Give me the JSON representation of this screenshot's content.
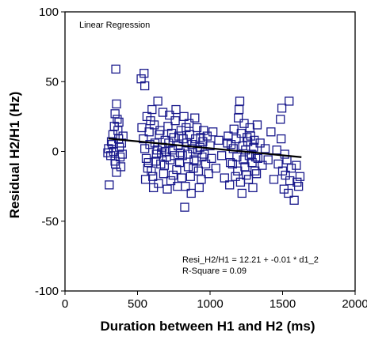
{
  "chart_data": {
    "type": "scatter",
    "subtitle": "Linear Regression",
    "xlabel": "Duration between H1 and H2 (ms)",
    "ylabel": "Residual H2/H1 (Hz)",
    "xlim": [
      0,
      2000
    ],
    "ylim": [
      -100,
      100
    ],
    "xticks": [
      0,
      500,
      1000,
      1500,
      2000
    ],
    "yticks": [
      -100,
      -50,
      0,
      50,
      100
    ],
    "x_tick_labels": [
      "0",
      "500",
      "1000",
      "1500",
      "2000"
    ],
    "y_tick_labels": [
      "-100",
      "-50",
      "0",
      "50",
      "100"
    ],
    "grid": false,
    "marker": "open-square",
    "marker_color": "#1a1a8c",
    "line_color": "#000000",
    "regression": {
      "intercept": 12.21,
      "slope": -0.01,
      "x_range": [
        300,
        1630
      ]
    },
    "annotations": [
      "Resi_H2/H1 = 12.21 + -0.01 * d1_2",
      "R-Square = 0.09"
    ],
    "points": [
      [
        350,
        59
      ],
      [
        545,
        56
      ],
      [
        525,
        52
      ],
      [
        550,
        47
      ],
      [
        1325,
        19
      ],
      [
        1495,
        31
      ],
      [
        1545,
        36
      ],
      [
        1485,
        23
      ],
      [
        300,
        2
      ],
      [
        295,
        -1
      ],
      [
        305,
        -24
      ],
      [
        320,
        7
      ],
      [
        330,
        12
      ],
      [
        340,
        18
      ],
      [
        345,
        27
      ],
      [
        355,
        34
      ],
      [
        360,
        23
      ],
      [
        365,
        15
      ],
      [
        370,
        9
      ],
      [
        375,
        3
      ],
      [
        380,
        -4
      ],
      [
        385,
        -11
      ],
      [
        355,
        -15
      ],
      [
        345,
        -7
      ],
      [
        335,
        0
      ],
      [
        325,
        5
      ],
      [
        315,
        -3
      ],
      [
        390,
        6
      ],
      [
        395,
        -2
      ],
      [
        400,
        11
      ],
      [
        372,
        21
      ],
      [
        348,
        -9
      ],
      [
        530,
        17
      ],
      [
        540,
        9
      ],
      [
        550,
        2
      ],
      [
        560,
        -5
      ],
      [
        570,
        -12
      ],
      [
        580,
        14
      ],
      [
        590,
        22
      ],
      [
        600,
        30
      ],
      [
        605,
        -18
      ],
      [
        610,
        -26
      ],
      [
        620,
        6
      ],
      [
        630,
        -2
      ],
      [
        640,
        36
      ],
      [
        650,
        12
      ],
      [
        660,
        -9
      ],
      [
        670,
        3
      ],
      [
        680,
        -16
      ],
      [
        690,
        8
      ],
      [
        700,
        -4
      ],
      [
        710,
        18
      ],
      [
        720,
        26
      ],
      [
        730,
        -21
      ],
      [
        740,
        1
      ],
      [
        750,
        10
      ],
      [
        760,
        22
      ],
      [
        770,
        -13
      ],
      [
        780,
        4
      ],
      [
        790,
        -8
      ],
      [
        800,
        15
      ],
      [
        810,
        -3
      ],
      [
        820,
        25
      ],
      [
        830,
        -25
      ],
      [
        840,
        6
      ],
      [
        850,
        -11
      ],
      [
        860,
        12
      ],
      [
        870,
        -30
      ],
      [
        880,
        2
      ],
      [
        890,
        -6
      ],
      [
        900,
        9
      ],
      [
        910,
        17
      ],
      [
        920,
        -14
      ],
      [
        930,
        3
      ],
      [
        940,
        -20
      ],
      [
        950,
        7
      ],
      [
        960,
        -2
      ],
      [
        970,
        -9
      ],
      [
        980,
        11
      ],
      [
        990,
        -16
      ],
      [
        1000,
        4
      ],
      [
        1010,
        -5
      ],
      [
        1020,
        14
      ],
      [
        1040,
        -12
      ],
      [
        1060,
        8
      ],
      [
        1080,
        -3
      ],
      [
        1100,
        -19
      ],
      [
        1120,
        6
      ],
      [
        1140,
        -8
      ],
      [
        1160,
        2
      ],
      [
        1180,
        9
      ],
      [
        1190,
        -14
      ],
      [
        1200,
        30
      ],
      [
        1205,
        36
      ],
      [
        1210,
        -22
      ],
      [
        1215,
        13
      ],
      [
        1220,
        -30
      ],
      [
        1225,
        4
      ],
      [
        1230,
        -6
      ],
      [
        1235,
        20
      ],
      [
        1240,
        -11
      ],
      [
        1245,
        1
      ],
      [
        1250,
        -17
      ],
      [
        1260,
        7
      ],
      [
        1270,
        -3
      ],
      [
        1280,
        11
      ],
      [
        1290,
        -8
      ],
      [
        1300,
        3
      ],
      [
        1310,
        -14
      ],
      [
        1330,
        -5
      ],
      [
        1345,
        6
      ],
      [
        1360,
        -10
      ],
      [
        1380,
        2
      ],
      [
        1400,
        -6
      ],
      [
        1420,
        14
      ],
      [
        1440,
        -20
      ],
      [
        1460,
        1
      ],
      [
        1470,
        -9
      ],
      [
        1490,
        9
      ],
      [
        1500,
        -14
      ],
      [
        1510,
        -27
      ],
      [
        1515,
        -2
      ],
      [
        1520,
        -17
      ],
      [
        1530,
        -6
      ],
      [
        1540,
        -30
      ],
      [
        1550,
        -21
      ],
      [
        1560,
        -12
      ],
      [
        1580,
        -35
      ],
      [
        1600,
        -22
      ],
      [
        1620,
        -18
      ],
      [
        1595,
        -10
      ],
      [
        1610,
        -25
      ],
      [
        555,
        -20
      ],
      [
        565,
        25
      ],
      [
        575,
        -8
      ],
      [
        585,
        5
      ],
      [
        595,
        -14
      ],
      [
        615,
        19
      ],
      [
        625,
        -7
      ],
      [
        635,
        1
      ],
      [
        645,
        -23
      ],
      [
        655,
        15
      ],
      [
        665,
        -1
      ],
      [
        675,
        28
      ],
      [
        685,
        -10
      ],
      [
        695,
        0
      ],
      [
        705,
        -27
      ],
      [
        715,
        6
      ],
      [
        725,
        -6
      ],
      [
        735,
        13
      ],
      [
        745,
        -17
      ],
      [
        755,
        -3
      ],
      [
        765,
        30
      ],
      [
        775,
        -25
      ],
      [
        785,
        11
      ],
      [
        795,
        -1
      ],
      [
        805,
        -19
      ],
      [
        815,
        9
      ],
      [
        825,
        -40
      ],
      [
        835,
        17
      ],
      [
        845,
        -2
      ],
      [
        855,
        20
      ],
      [
        865,
        -18
      ],
      [
        875,
        5
      ],
      [
        885,
        -12
      ],
      [
        895,
        24
      ],
      [
        905,
        -7
      ],
      [
        915,
        1
      ],
      [
        925,
        -26
      ],
      [
        935,
        10
      ],
      [
        945,
        -4
      ],
      [
        955,
        15
      ],
      [
        1195,
        24
      ],
      [
        1185,
        -4
      ],
      [
        1175,
        -18
      ],
      [
        1165,
        16
      ],
      [
        1155,
        -9
      ],
      [
        1145,
        5
      ],
      [
        1135,
        -24
      ],
      [
        1125,
        11
      ],
      [
        1255,
        10
      ],
      [
        1265,
        -20
      ],
      [
        1275,
        17
      ],
      [
        1285,
        -2
      ],
      [
        1295,
        -26
      ],
      [
        1305,
        8
      ],
      [
        1315,
        -4
      ],
      [
        1320,
        -16
      ]
    ]
  }
}
